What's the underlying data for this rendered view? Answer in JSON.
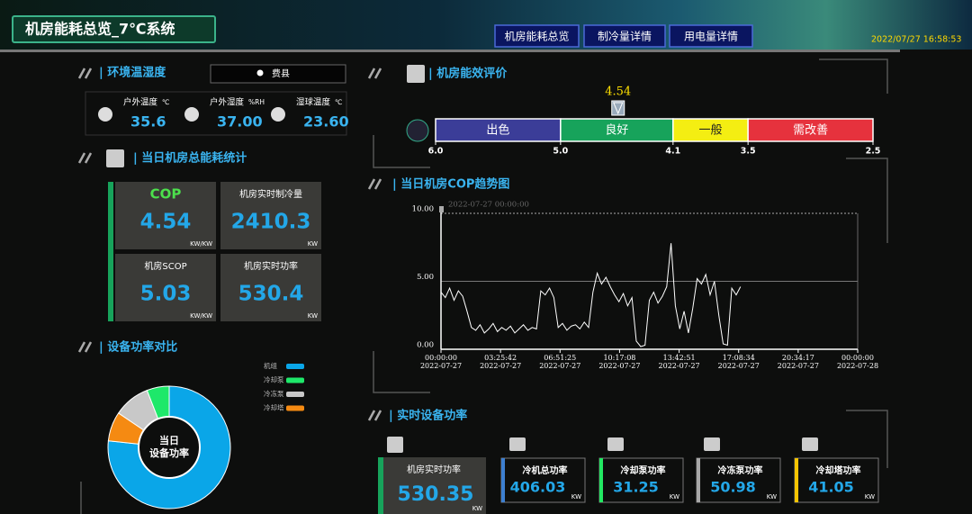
{
  "header": {
    "title": "机房能耗总览_7℃系统",
    "nav": [
      "机房能耗总览",
      "制冷量详情",
      "用电量详情"
    ],
    "datetime": "2022/07/27 16:58:53"
  },
  "environment": {
    "title": "| 环境温湿度",
    "location": "费县",
    "items": [
      {
        "label": "户外温度",
        "unit": "℃",
        "value": "35.6"
      },
      {
        "label": "户外湿度",
        "unit": "%RH",
        "value": "37.00"
      },
      {
        "label": "湿球温度",
        "unit": "℃",
        "value": "23.60"
      }
    ]
  },
  "efficiency": {
    "title": "| 机房能效评价",
    "value": 4.54,
    "xlim": [
      6.0,
      2.5
    ],
    "xticks": [
      {
        "value": 6,
        "label": "6.0"
      },
      {
        "value": 5,
        "label": "5.0"
      },
      4.1,
      3.5,
      2.5
    ],
    "bands": [
      {
        "name": "出色",
        "color": "#3b3d98"
      },
      {
        "name": "良好",
        "color": "#17a35b"
      },
      {
        "name": "一般",
        "color": "#f4ee12"
      },
      {
        "name": "需改善",
        "color": "#e6323d"
      }
    ]
  },
  "daily": {
    "title": "| 当日机房总能耗统计",
    "cards": [
      {
        "label": "COP",
        "value": "4.54",
        "unit": "KW/KW"
      },
      {
        "label": "机房实时制冷量",
        "value": "2410.3",
        "unit": "KW"
      },
      {
        "label": "机房SCOP",
        "value": "5.03",
        "unit": "KW/KW"
      },
      {
        "label": "机房实时功率",
        "value": "530.4",
        "unit": "KW"
      }
    ]
  },
  "cop_trend": {
    "type": "line",
    "title": "| 当日机房COP趋势图",
    "cursor_label": "2022-07-27 00:00:00",
    "xlim": [
      0,
      1440
    ],
    "xticks": [
      {
        "value": 0,
        "label": "00:00:00"
      },
      {
        "value": 205.7,
        "label": "03:25:42"
      },
      {
        "value": 411.4,
        "label": "06:51:25"
      },
      {
        "value": 617.1,
        "label": "10:17:08"
      },
      {
        "value": 822.9,
        "label": "13:42:51"
      },
      {
        "value": 1028.6,
        "label": "17:08:34"
      },
      {
        "value": 1234.3,
        "label": "20:34:17"
      },
      {
        "value": 1440,
        "label": "00:00:00"
      }
    ],
    "xtick_dates": [
      "2022-07-27",
      "2022-07-27",
      "2022-07-27",
      "2022-07-27",
      "2022-07-27",
      "2022-07-27",
      "2022-07-27",
      "2022-07-28"
    ],
    "ylim": [
      0,
      10
    ],
    "yticks": [
      {
        "value": 0,
        "label": "0.00"
      },
      {
        "value": 5,
        "label": "5.00"
      },
      {
        "value": 10,
        "label": "10.00"
      }
    ],
    "grid": true,
    "series": [
      {
        "color": "#ffffff",
        "x": [
          0,
          15,
          30,
          45,
          60,
          75,
          90,
          105,
          120,
          135,
          150,
          165,
          180,
          195,
          210,
          225,
          240,
          255,
          270,
          285,
          300,
          315,
          330,
          345,
          360,
          375,
          390,
          405,
          420,
          435,
          450,
          465,
          480,
          495,
          510,
          525,
          540,
          555,
          570,
          585,
          600,
          615,
          630,
          645,
          660,
          675,
          690,
          705,
          720,
          735,
          750,
          765,
          780,
          795,
          810,
          825,
          840,
          855,
          870,
          885,
          900,
          915,
          930,
          945,
          960,
          975,
          990,
          1005,
          1020,
          1035
        ],
        "values": [
          4.2,
          3.8,
          4.5,
          3.6,
          4.3,
          3.9,
          2.8,
          1.6,
          1.4,
          1.8,
          1.2,
          1.5,
          1.9,
          1.3,
          1.6,
          1.4,
          1.7,
          1.2,
          1.5,
          1.8,
          1.4,
          1.6,
          1.5,
          4.3,
          4.0,
          4.5,
          3.8,
          1.6,
          1.9,
          1.4,
          1.7,
          1.8,
          1.5,
          2.0,
          1.6,
          4.2,
          5.6,
          4.8,
          5.3,
          4.6,
          4.0,
          3.5,
          4.1,
          3.2,
          3.8,
          0.6,
          0.2,
          0.3,
          3.6,
          4.2,
          3.4,
          3.9,
          4.6,
          7.8,
          3.2,
          1.5,
          2.8,
          1.2,
          3.0,
          5.2,
          4.8,
          5.5,
          4.0,
          5.0,
          2.5,
          0.4,
          0.3,
          4.5,
          4.0,
          4.6
        ]
      }
    ]
  },
  "power_compare": {
    "type": "pie",
    "title": "| 设备功率对比",
    "center_label": [
      "当日",
      "设备功率"
    ],
    "categories": [
      "机组",
      "冷却泵",
      "冷冻泵",
      "冷却塔"
    ],
    "values": [
      406.03,
      31.25,
      50.98,
      41.05
    ],
    "colors": [
      "#0aa6e8",
      "#1ee86a",
      "#c8c8c8",
      "#f58a12"
    ]
  },
  "realtime": {
    "title": "| 实时设备功率",
    "cards": [
      {
        "label": "机房实时功率",
        "value": "530.35",
        "unit": "KW",
        "color": "#17a35b"
      },
      {
        "label": "冷机总功率",
        "value": "406.03",
        "unit": "KW",
        "color": "#3d7fd0"
      },
      {
        "label": "冷却泵功率",
        "value": "31.25",
        "unit": "KW",
        "color": "#22e862"
      },
      {
        "label": "冷冻泵功率",
        "value": "50.98",
        "unit": "KW",
        "color": "#a8a8a8"
      },
      {
        "label": "冷却塔功率",
        "value": "41.05",
        "unit": "KW",
        "color": "#f6c400"
      }
    ]
  }
}
